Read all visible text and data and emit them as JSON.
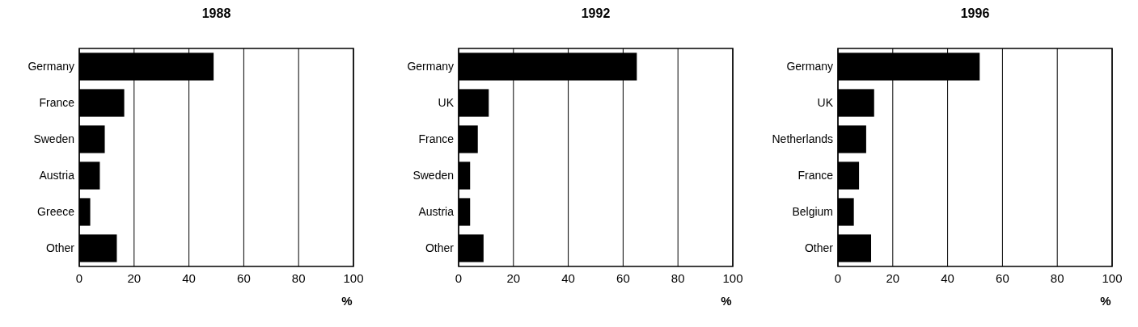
{
  "chart_data": [
    {
      "type": "bar",
      "orientation": "horizontal",
      "title": "1988",
      "xlabel": "%",
      "categories": [
        "Germany",
        "France",
        "Sweden",
        "Austria",
        "Greece",
        "Other"
      ],
      "values": [
        49,
        16.4,
        9.3,
        7.5,
        4,
        13.7
      ],
      "color": "#000000",
      "xlim": [
        0,
        100
      ],
      "xticks": [
        0,
        20,
        40,
        60,
        80,
        100
      ],
      "grid": "x"
    },
    {
      "type": "bar",
      "orientation": "horizontal",
      "title": "1992",
      "xlabel": "%",
      "categories": [
        "Germany",
        "UK",
        "France",
        "Sweden",
        "Austria",
        "Other"
      ],
      "values": [
        65,
        11,
        7,
        4.2,
        4.2,
        9.1
      ],
      "color": "#000000",
      "xlim": [
        0,
        100
      ],
      "xticks": [
        0,
        20,
        40,
        60,
        80,
        100
      ],
      "grid": "x"
    },
    {
      "type": "bar",
      "orientation": "horizontal",
      "title": "1996",
      "xlabel": "%",
      "categories": [
        "Germany",
        "UK",
        "Netherlands",
        "France",
        "Belgium",
        "Other"
      ],
      "values": [
        51.7,
        13.2,
        10.3,
        7.7,
        5.8,
        12.1
      ],
      "color": "#000000",
      "xlim": [
        0,
        100
      ],
      "xticks": [
        0,
        20,
        40,
        60,
        80,
        100
      ],
      "grid": "x"
    }
  ]
}
